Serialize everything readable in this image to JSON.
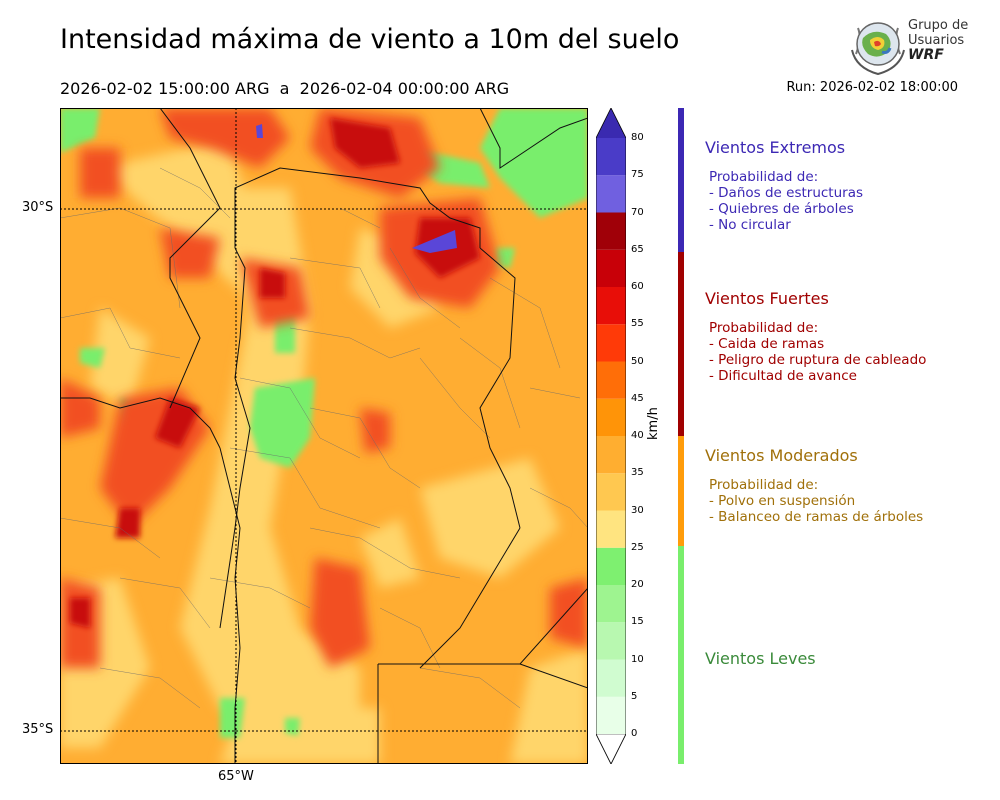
{
  "header": {
    "title": "Intensidad máxima de viento a 10m del suelo",
    "period_start": "2026-02-02 15:00:00 ARG",
    "period_sep": "a",
    "period_end": "2026-02-04 00:00:00 ARG",
    "run": "Run: 2026-02-02 18:00:00"
  },
  "logo": {
    "line1": "Grupo de",
    "line2": "Usuarios",
    "line3": "WRF",
    "icon": "globe-logo-icon"
  },
  "map": {
    "lat_labels": [
      "30°S",
      "35°S"
    ],
    "lon_labels": [
      "65°W"
    ],
    "gridlines": "dotted"
  },
  "colorbar": {
    "unit": "km/h",
    "tick_labels": [
      "0",
      "5",
      "10",
      "15",
      "20",
      "25",
      "30",
      "35",
      "40",
      "45",
      "50",
      "55",
      "60",
      "65",
      "70",
      "75",
      "80"
    ],
    "colors": [
      "#e8ffe8",
      "#d0fcd0",
      "#b8f8b0",
      "#9ef490",
      "#7ef070",
      "#ffe480",
      "#ffc850",
      "#ffae30",
      "#ff9408",
      "#ff6e08",
      "#ff3a08",
      "#e80e08",
      "#c80008",
      "#a00008",
      "#7060e0",
      "#4a3cc8",
      "#3a2ab0"
    ]
  },
  "categories": [
    {
      "title": "Vientos Extremos",
      "color": "#3c28b4",
      "desc_header": "Probabilidad de:",
      "items": [
        "- Daños de estructuras",
        "- Quiebres de árboles",
        "- No circular"
      ]
    },
    {
      "title": "Vientos Fuertes",
      "color": "#a00000",
      "desc_header": "Probabilidad de:",
      "items": [
        "- Caida de ramas",
        "- Peligro de ruptura de cableado",
        "- Dificultad de avance"
      ]
    },
    {
      "title": "Vientos Moderados",
      "color": "#a0700a",
      "desc_header": "Probabilidad de:",
      "items": [
        "- Polvo en suspensión",
        "- Balanceo de ramas de árboles"
      ]
    },
    {
      "title": "Vientos Leves",
      "color": "#3a8a3a"
    }
  ]
}
